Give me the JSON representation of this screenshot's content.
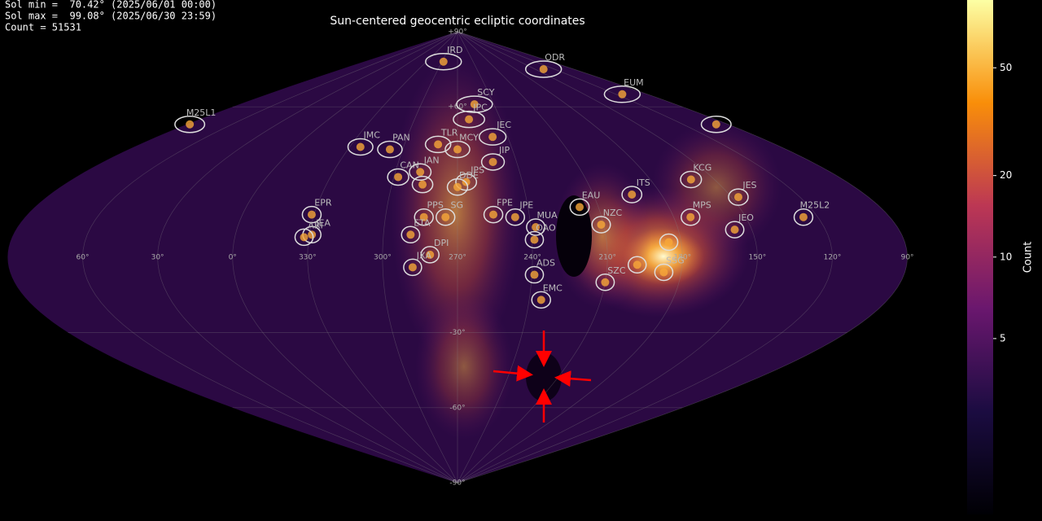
{
  "chart_data": {
    "type": "skymap",
    "title": "Sun-centered geocentric ecliptic coordinates",
    "info": [
      "Sol min =  70.42° (2025/06/01 00:00)",
      "Sol max =  99.08° (2025/06/30 23:59)",
      "Count = 51531"
    ],
    "projection": "sinusoidal",
    "center_lon": 270,
    "xticks": [
      {
        "value": 60,
        "label": "60°"
      },
      {
        "value": 30,
        "label": "30°"
      },
      {
        "value": 0,
        "label": "0°"
      },
      {
        "value": 330,
        "label": "330°"
      },
      {
        "value": 300,
        "label": "300°"
      },
      {
        "value": 270,
        "label": "270°"
      },
      {
        "value": 240,
        "label": "240°"
      },
      {
        "value": 210,
        "label": "210°"
      },
      {
        "value": 180,
        "label": "180°"
      },
      {
        "value": 150,
        "label": "150°"
      },
      {
        "value": 120,
        "label": "120°"
      },
      {
        "value": 90,
        "label": "90°"
      }
    ],
    "yticks": [
      {
        "value": 90,
        "label": "+90°"
      },
      {
        "value": 60,
        "label": "+60°"
      },
      {
        "value": -30,
        "label": "-30°"
      },
      {
        "value": -60,
        "label": "-60°"
      },
      {
        "value": -90,
        "label": "-90°"
      }
    ],
    "grid": true,
    "showers": [
      {
        "name": "JRD",
        "lon": 297,
        "lat": 78
      },
      {
        "name": "ODR",
        "lon": 137,
        "lat": 75
      },
      {
        "name": "EUM",
        "lon": 114,
        "lat": 65
      },
      {
        "name": null,
        "lon": 98,
        "lat": 53
      },
      {
        "name": "M25L1",
        "lon": 88,
        "lat": 53
      },
      {
        "name": "SCY",
        "lon": 256,
        "lat": 61
      },
      {
        "name": "JPC",
        "lon": 262,
        "lat": 55
      },
      {
        "name": "JEC",
        "lon": 249,
        "lat": 48
      },
      {
        "name": "MCY",
        "lon": 270,
        "lat": 43
      },
      {
        "name": "TLR",
        "lon": 281,
        "lat": 45
      },
      {
        "name": "JIP",
        "lon": 252,
        "lat": 38
      },
      {
        "name": "JMC",
        "lon": 324,
        "lat": 44
      },
      {
        "name": "PAN",
        "lon": 307,
        "lat": 43
      },
      {
        "name": "CAN",
        "lon": 298,
        "lat": 32
      },
      {
        "name": "JAN",
        "lon": 288,
        "lat": 34
      },
      {
        "name": null,
        "lon": 286,
        "lat": 29
      },
      {
        "name": "JPS",
        "lon": 266,
        "lat": 30
      },
      {
        "name": "DDE",
        "lon": 270,
        "lat": 28
      },
      {
        "name": "FPE",
        "lon": 255,
        "lat": 17
      },
      {
        "name": "JPE",
        "lon": 246,
        "lat": 16
      },
      {
        "name": "MUA",
        "lon": 238,
        "lat": 12
      },
      {
        "name": "OAO",
        "lon": 239,
        "lat": 7
      },
      {
        "name": "EPR",
        "lon": 331,
        "lat": 17
      },
      {
        "name": "JEA",
        "lon": 329,
        "lat": 9
      },
      {
        "name": "ARI",
        "lon": 332,
        "lat": 8
      },
      {
        "name": "PPS",
        "lon": 284,
        "lat": 16
      },
      {
        "name": "SG",
        "lon": 275,
        "lat": 16
      },
      {
        "name": "ETA",
        "lon": 289,
        "lat": 9
      },
      {
        "name": "DPI",
        "lon": 281,
        "lat": 1
      },
      {
        "name": "JXA",
        "lon": 288,
        "lat": -4
      },
      {
        "name": "ADS",
        "lon": 239,
        "lat": -7
      },
      {
        "name": "EMC",
        "lon": 235,
        "lat": -17
      },
      {
        "name": "EAU",
        "lon": 218,
        "lat": 20
      },
      {
        "name": "NZC",
        "lon": 211,
        "lat": 13
      },
      {
        "name": "ITS",
        "lon": 193,
        "lat": 25
      },
      {
        "name": "KCG",
        "lon": 161,
        "lat": 31
      },
      {
        "name": "JES",
        "lon": 147,
        "lat": 24
      },
      {
        "name": "MPS",
        "lon": 173,
        "lat": 16
      },
      {
        "name": "JEO",
        "lon": 157,
        "lat": 11
      },
      {
        "name": "M25L2",
        "lon": 126,
        "lat": 16
      },
      {
        "name": "SSG",
        "lon": 187,
        "lat": -6
      },
      {
        "name": "SZC",
        "lon": 210,
        "lat": -10
      },
      {
        "name": null,
        "lon": 185,
        "lat": 6
      },
      {
        "name": null,
        "lon": 198,
        "lat": -3
      }
    ],
    "colorbar": {
      "label": "Count",
      "log": true,
      "clim": [
        1.12,
        89
      ],
      "ticks": [
        5,
        10,
        20,
        50
      ]
    }
  }
}
